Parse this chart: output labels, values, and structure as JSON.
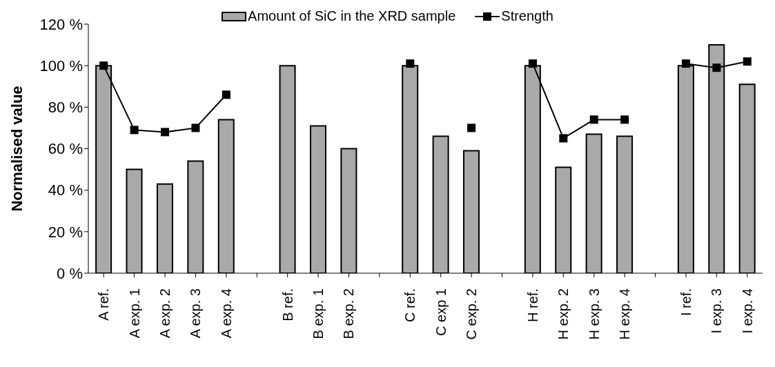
{
  "chart_data": {
    "type": "bar",
    "ylabel": "Normalised value",
    "categories": [
      "A ref.",
      "A exp. 1",
      "A exp. 2",
      "A exp. 3",
      "A exp. 4",
      null,
      "B ref.",
      "B exp. 1",
      "B exp. 2",
      null,
      "C ref.",
      "C exp 1",
      "C exp. 2",
      null,
      "H ref.",
      "H exp. 2",
      "H exp. 3",
      "H exp. 4",
      null,
      "I ref.",
      "I exp. 3",
      "I exp. 4"
    ],
    "series": [
      {
        "name": "Amount of SiC in the XRD sample",
        "color": "#a9a9a9",
        "values": [
          100,
          50,
          43,
          54,
          74,
          null,
          100,
          71,
          60,
          null,
          100,
          66,
          59,
          null,
          100,
          51,
          67,
          66,
          null,
          100,
          110,
          91
        ]
      },
      {
        "name": "Strength",
        "type": "line",
        "color": "#000000",
        "marker": "square",
        "line_style": "solid",
        "values": [
          100,
          69,
          68,
          70,
          86,
          null,
          null,
          null,
          null,
          null,
          101,
          null,
          70,
          null,
          101,
          65,
          74,
          74,
          null,
          101,
          99,
          102
        ]
      }
    ],
    "ylim": [
      0,
      120
    ],
    "yticks": [
      {
        "value": 0,
        "label": "0 %"
      },
      {
        "value": 20,
        "label": "20 %"
      },
      {
        "value": 40,
        "label": "40 %"
      },
      {
        "value": 60,
        "label": "60 %"
      },
      {
        "value": 80,
        "label": "80 %"
      },
      {
        "value": 100,
        "label": "100 %"
      },
      {
        "value": 120,
        "label": "120 %"
      }
    ],
    "grid": false,
    "legend": "top"
  }
}
